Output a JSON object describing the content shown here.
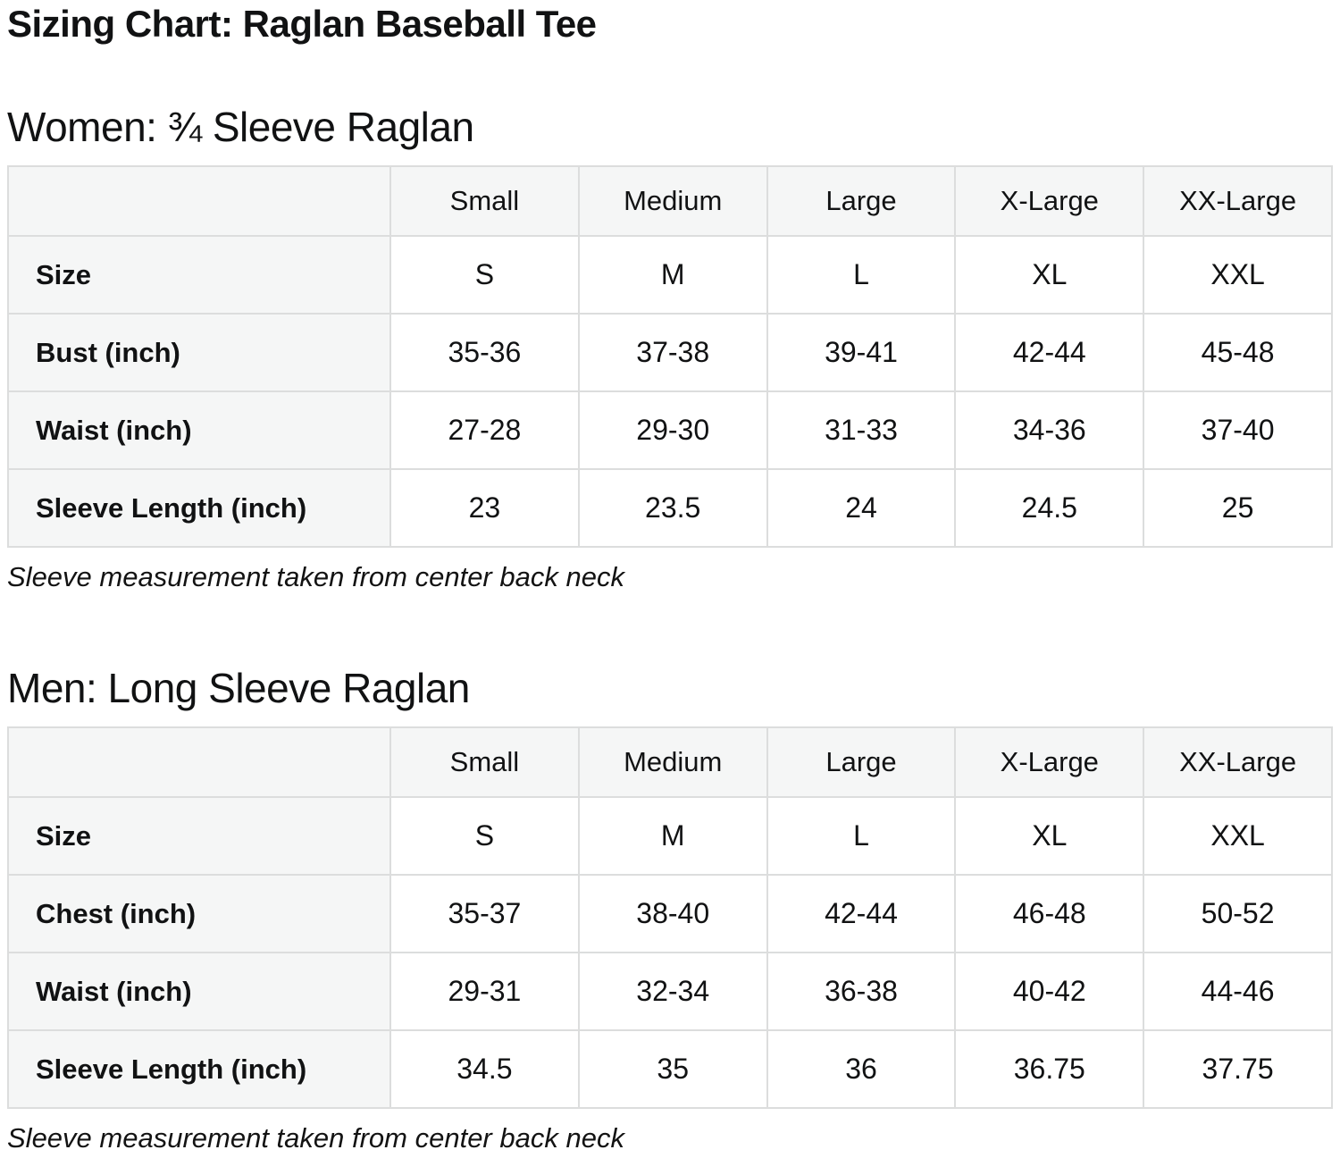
{
  "page": {
    "title": "Sizing Chart: Raglan Baseball Tee"
  },
  "colors": {
    "cell_background": "#ffffff",
    "header_background": "#f5f6f6",
    "grid_border": "#dcdddd",
    "text": "#111213"
  },
  "sections": [
    {
      "id": "women",
      "heading": "Women: ¾ Sleeve Raglan",
      "columns": [
        "",
        "Small",
        "Medium",
        "Large",
        "X-Large",
        "XX-Large"
      ],
      "rows": [
        {
          "label": "Size",
          "values": [
            "S",
            "M",
            "L",
            "XL",
            "XXL"
          ]
        },
        {
          "label": "Bust (inch)",
          "values": [
            "35-36",
            "37-38",
            "39-41",
            "42-44",
            "45-48"
          ]
        },
        {
          "label": "Waist (inch)",
          "values": [
            "27-28",
            "29-30",
            "31-33",
            "34-36",
            "37-40"
          ]
        },
        {
          "label": "Sleeve Length (inch)",
          "values": [
            "23",
            "23.5",
            "24",
            "24.5",
            "25"
          ]
        }
      ],
      "footnote": "Sleeve measurement taken from center back neck"
    },
    {
      "id": "men",
      "heading": "Men: Long Sleeve Raglan",
      "columns": [
        "",
        "Small",
        "Medium",
        "Large",
        "X-Large",
        "XX-Large"
      ],
      "rows": [
        {
          "label": "Size",
          "values": [
            "S",
            "M",
            "L",
            "XL",
            "XXL"
          ]
        },
        {
          "label": "Chest (inch)",
          "values": [
            "35-37",
            "38-40",
            "42-44",
            "46-48",
            "50-52"
          ]
        },
        {
          "label": "Waist (inch)",
          "values": [
            "29-31",
            "32-34",
            "36-38",
            "40-42",
            "44-46"
          ]
        },
        {
          "label": "Sleeve Length (inch)",
          "values": [
            "34.5",
            "35",
            "36",
            "36.75",
            "37.75"
          ]
        }
      ],
      "footnote": "Sleeve measurement taken from center back neck"
    }
  ]
}
